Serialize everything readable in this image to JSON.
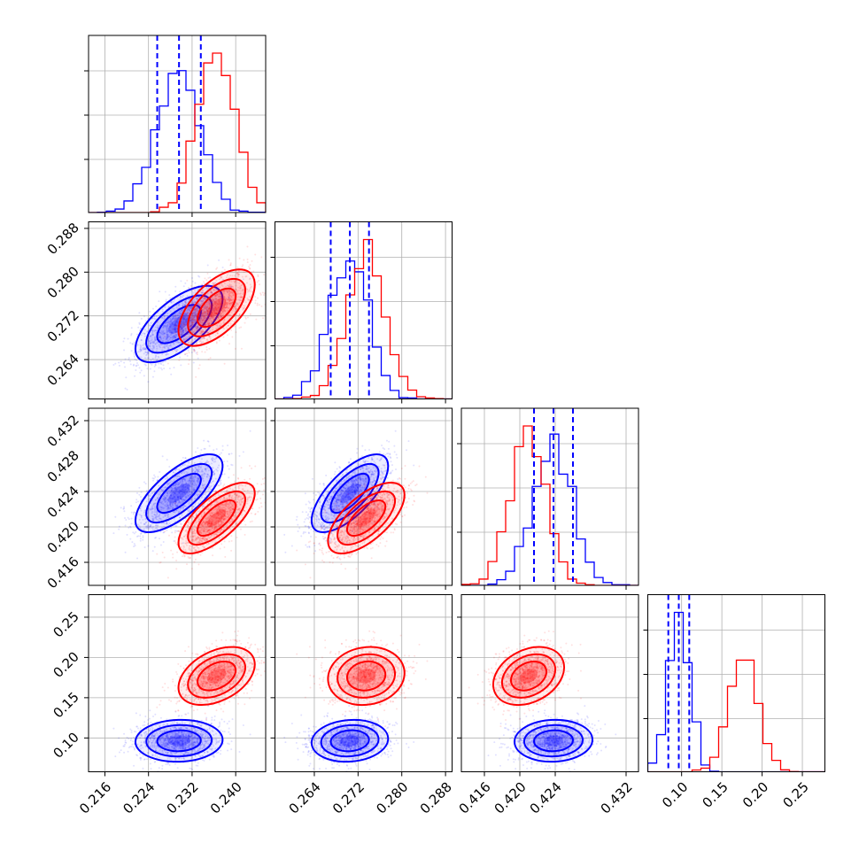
{
  "chart_data": {
    "type": "corner",
    "parameters": [
      {
        "ticks": [
          0.216,
          0.224,
          0.232,
          0.24
        ],
        "tick_labels": [
          "0.216",
          "0.224",
          "0.232",
          "0.240"
        ],
        "range": [
          0.213,
          0.2455
        ]
      },
      {
        "ticks": [
          0.264,
          0.272,
          0.28,
          0.288
        ],
        "tick_labels": [
          "0.264",
          "0.272",
          "0.280",
          "0.288"
        ],
        "range": [
          0.2568,
          0.2892
        ]
      },
      {
        "ticks": [
          0.416,
          0.42,
          0.424,
          0.432
        ],
        "tick_labels": [
          "0.416",
          "0.420",
          "0.424",
          "0.432"
        ],
        "range": [
          0.4134,
          0.4334
        ]
      },
      {
        "ticks": [
          0.1,
          0.15,
          0.2,
          0.25
        ],
        "tick_labels": [
          "0.10",
          "0.15",
          "0.20",
          "0.25"
        ],
        "range": [
          0.058,
          0.278
        ]
      }
    ],
    "y_tick_labels": [
      null,
      [
        "0.264",
        "0.272",
        "0.280",
        "0.288"
      ],
      [
        "0.416",
        "0.420",
        "0.424",
        "0.428",
        "0.432"
      ],
      [
        "0.10",
        "0.15",
        "0.20",
        "0.25"
      ]
    ],
    "y_ticks": [
      null,
      [
        0.264,
        0.272,
        0.28,
        0.288
      ],
      [
        0.416,
        0.42,
        0.424,
        0.428,
        0.432
      ],
      [
        0.1,
        0.15,
        0.2,
        0.25
      ]
    ],
    "series": [
      {
        "color": "#0000ff",
        "mean": [
          0.2296,
          0.2705,
          0.4238,
          0.0965
        ],
        "sd": [
          0.004,
          0.0035,
          0.0022,
          0.013
        ]
      },
      {
        "color": "#ff0000",
        "mean": [
          0.2365,
          0.2735,
          0.421,
          0.177
        ],
        "sd": [
          0.0035,
          0.0035,
          0.002,
          0.018
        ]
      }
    ],
    "correlations": {
      "0": [
        [
          1.0,
          0.65,
          0.7,
          0.05
        ],
        [
          0.65,
          1.0,
          0.7,
          0.1
        ],
        [
          0.7,
          0.7,
          1.0,
          0.05
        ],
        [
          0.05,
          0.1,
          0.05,
          1.0
        ]
      ],
      "1": [
        [
          1.0,
          0.6,
          0.7,
          0.4
        ],
        [
          0.6,
          1.0,
          0.65,
          0.1
        ],
        [
          0.7,
          0.65,
          1.0,
          0.3
        ],
        [
          0.4,
          0.1,
          0.3,
          1.0
        ]
      ]
    },
    "quantile_lines": {
      "color": "#0000ff",
      "values": [
        [
          0.2256,
          0.2296,
          0.2336
        ],
        [
          0.267,
          0.2705,
          0.274
        ],
        [
          0.4216,
          0.4238,
          0.426
        ],
        [
          0.0835,
          0.0965,
          0.1095
        ]
      ]
    },
    "grid": true,
    "histogram_bins": 20
  }
}
